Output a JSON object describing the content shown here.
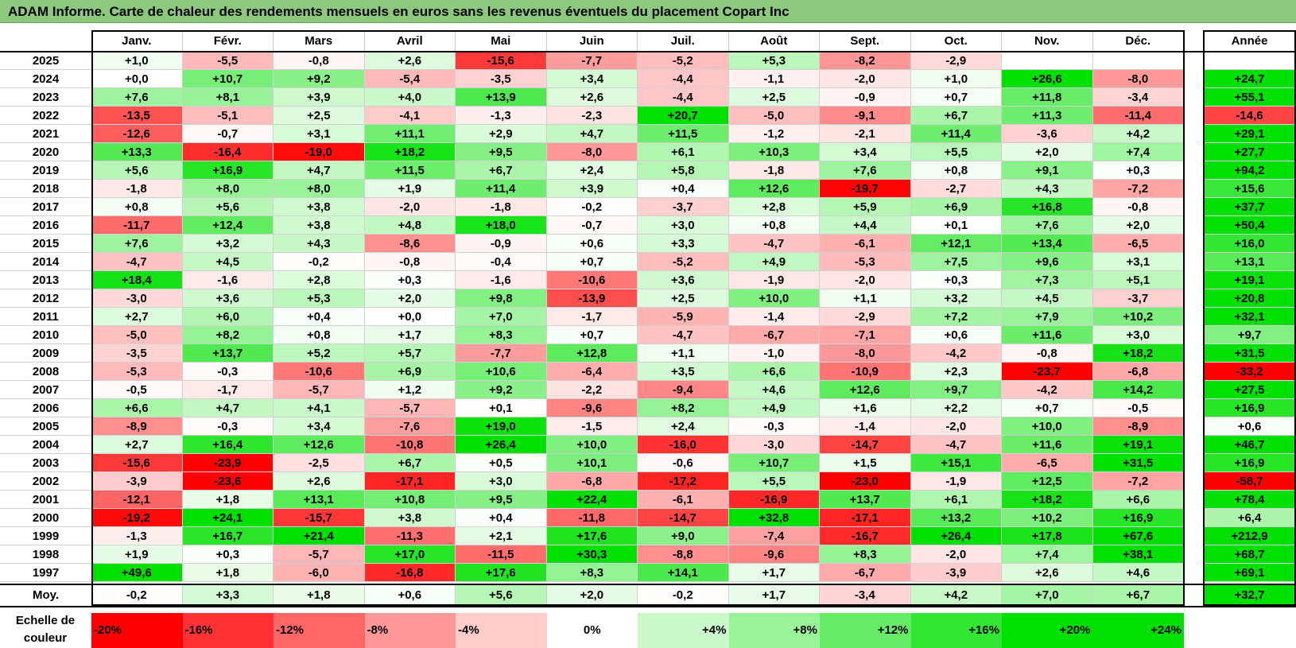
{
  "title": "ADAM Informe. Carte de chaleur des rendements mensuels en euros sans les revenus éventuels du placement Copart Inc",
  "legend_label": "Echelle de couleur",
  "colors": {
    "title_bg": "#8cc97c",
    "max_red": "#ff0000",
    "max_green": "#00e000",
    "zero": "#ffffff"
  },
  "chart_data": {
    "type": "heatmap",
    "title": "ADAM Informe. Carte de chaleur des rendements mensuels en euros sans les revenus éventuels du placement Copart Inc",
    "columns": [
      "Janv.",
      "Févr.",
      "Mars",
      "Avril",
      "Mai",
      "Juin",
      "Juil.",
      "Août",
      "Sept.",
      "Oct.",
      "Nov.",
      "Déc."
    ],
    "year_column": "Année",
    "rows": [
      {
        "year": "2025",
        "values": [
          "+1,0",
          "-5,5",
          "-0,8",
          "+2,6",
          "-15,6",
          "-7,7",
          "-5,2",
          "+5,3",
          "-8,2",
          "-2,9",
          "",
          ""
        ],
        "annual": ""
      },
      {
        "year": "2024",
        "values": [
          "+0,0",
          "+10,7",
          "+9,2",
          "-5,4",
          "-3,5",
          "+3,4",
          "-4,4",
          "-1,1",
          "-2,0",
          "+1,0",
          "+26,6",
          "-8,0"
        ],
        "annual": "+24,7"
      },
      {
        "year": "2023",
        "values": [
          "+7,6",
          "+8,1",
          "+3,9",
          "+4,0",
          "+13,9",
          "+2,6",
          "-4,4",
          "+2,5",
          "-0,9",
          "+0,7",
          "+11,8",
          "-3,4"
        ],
        "annual": "+55,1"
      },
      {
        "year": "2022",
        "values": [
          "-13,5",
          "-5,1",
          "+2,5",
          "-4,1",
          "-1,3",
          "-2,3",
          "+20,7",
          "-5,0",
          "-9,1",
          "+6,7",
          "+11,3",
          "-11,4"
        ],
        "annual": "-14,6"
      },
      {
        "year": "2021",
        "values": [
          "-12,6",
          "-0,7",
          "+3,1",
          "+11,1",
          "+2,9",
          "+4,7",
          "+11,5",
          "-1,2",
          "-2,1",
          "+11,4",
          "-3,6",
          "+4,2"
        ],
        "annual": "+29,1"
      },
      {
        "year": "2020",
        "values": [
          "+13,3",
          "-16,4",
          "-19,0",
          "+18,2",
          "+9,5",
          "-8,0",
          "+6,1",
          "+10,3",
          "+3,4",
          "+5,5",
          "+2,0",
          "+7,4"
        ],
        "annual": "+27,7"
      },
      {
        "year": "2019",
        "values": [
          "+5,6",
          "+16,9",
          "+4,7",
          "+11,5",
          "+6,7",
          "+2,4",
          "+5,8",
          "-1,8",
          "+7,6",
          "+0,8",
          "+9,1",
          "+0,3"
        ],
        "annual": "+94,2"
      },
      {
        "year": "2018",
        "values": [
          "-1,8",
          "+8,0",
          "+8,0",
          "+1,9",
          "+11,4",
          "+3,9",
          "+0,4",
          "+12,6",
          "-19,7",
          "-2,7",
          "+4,3",
          "-7,2"
        ],
        "annual": "+15,6"
      },
      {
        "year": "2017",
        "values": [
          "+0,8",
          "+5,6",
          "+3,8",
          "-2,0",
          "-1,8",
          "-0,2",
          "-3,7",
          "+2,8",
          "+5,9",
          "+6,9",
          "+16,8",
          "-0,8"
        ],
        "annual": "+37,7"
      },
      {
        "year": "2016",
        "values": [
          "-11,7",
          "+12,4",
          "+3,8",
          "+4,8",
          "+18,0",
          "-0,7",
          "+3,0",
          "+0,8",
          "+4,4",
          "+0,1",
          "+7,6",
          "+2,0"
        ],
        "annual": "+50,4"
      },
      {
        "year": "2015",
        "values": [
          "+7,6",
          "+3,2",
          "+4,3",
          "-8,6",
          "-0,9",
          "+0,6",
          "+3,3",
          "-4,7",
          "-6,1",
          "+12,1",
          "+13,4",
          "-6,5"
        ],
        "annual": "+16,0"
      },
      {
        "year": "2014",
        "values": [
          "-4,7",
          "+4,5",
          "-0,2",
          "-0,8",
          "-0,4",
          "+0,7",
          "-5,2",
          "+4,9",
          "-5,3",
          "+7,5",
          "+9,6",
          "+3,1"
        ],
        "annual": "+13,1"
      },
      {
        "year": "2013",
        "values": [
          "+18,4",
          "-1,6",
          "+2,8",
          "+0,3",
          "-1,6",
          "-10,6",
          "+3,6",
          "-1,9",
          "-2,0",
          "+0,3",
          "+7,3",
          "+5,1"
        ],
        "annual": "+19,1"
      },
      {
        "year": "2012",
        "values": [
          "-3,0",
          "+3,6",
          "+5,3",
          "+2,0",
          "+9,8",
          "-13,9",
          "+2,5",
          "+10,0",
          "+1,1",
          "+3,2",
          "+4,5",
          "-3,7"
        ],
        "annual": "+20,8"
      },
      {
        "year": "2011",
        "values": [
          "+2,7",
          "+6,0",
          "+0,4",
          "+0,0",
          "+7,0",
          "-1,7",
          "-5,9",
          "-1,4",
          "-2,9",
          "+7,2",
          "+7,9",
          "+10,2"
        ],
        "annual": "+32,1"
      },
      {
        "year": "2010",
        "values": [
          "-5,0",
          "+8,2",
          "+0,8",
          "+1,7",
          "+8,3",
          "+0,7",
          "-4,7",
          "-6,7",
          "-7,1",
          "+0,6",
          "+11,6",
          "+3,0"
        ],
        "annual": "+9,7"
      },
      {
        "year": "2009",
        "values": [
          "-3,5",
          "+13,7",
          "+5,2",
          "+5,7",
          "-7,7",
          "+12,8",
          "+1,1",
          "-1,0",
          "-8,0",
          "-4,2",
          "-0,8",
          "+18,2"
        ],
        "annual": "+31,5"
      },
      {
        "year": "2008",
        "values": [
          "-5,3",
          "-0,3",
          "-10,6",
          "+6,9",
          "+10,6",
          "-6,4",
          "+3,5",
          "+6,6",
          "-10,9",
          "+2,3",
          "-23,7",
          "-6,8"
        ],
        "annual": "-33,2"
      },
      {
        "year": "2007",
        "values": [
          "-0,5",
          "-1,7",
          "-5,7",
          "+1,2",
          "+9,2",
          "-2,2",
          "-9,4",
          "+4,6",
          "+12,6",
          "+9,7",
          "-4,2",
          "+14,2"
        ],
        "annual": "+27,5"
      },
      {
        "year": "2006",
        "values": [
          "+6,6",
          "+4,7",
          "+4,1",
          "-5,7",
          "+0,1",
          "-9,6",
          "+8,2",
          "+4,9",
          "+1,6",
          "+2,2",
          "+0,7",
          "-0,5"
        ],
        "annual": "+16,9"
      },
      {
        "year": "2005",
        "values": [
          "-8,9",
          "-0,3",
          "+3,4",
          "-7,6",
          "+19,0",
          "-1,5",
          "+2,4",
          "-0,3",
          "-1,4",
          "-2,0",
          "+10,0",
          "-8,9"
        ],
        "annual": "+0,6"
      },
      {
        "year": "2004",
        "values": [
          "+2,7",
          "+16,4",
          "+12,6",
          "-10,8",
          "+26,4",
          "+10,0",
          "-16,0",
          "-3,0",
          "-14,7",
          "-4,7",
          "+11,6",
          "+19,1"
        ],
        "annual": "+46,7"
      },
      {
        "year": "2003",
        "values": [
          "-15,6",
          "-23,9",
          "-2,5",
          "+6,7",
          "+0,5",
          "+10,1",
          "-0,6",
          "+10,7",
          "+1,5",
          "+15,1",
          "-6,5",
          "+31,5"
        ],
        "annual": "+16,9"
      },
      {
        "year": "2002",
        "values": [
          "-3,9",
          "-23,6",
          "+2,6",
          "-17,1",
          "+3,0",
          "-6,8",
          "-17,2",
          "+5,5",
          "-23,0",
          "-1,9",
          "+12,5",
          "-7,2"
        ],
        "annual": "-58,7"
      },
      {
        "year": "2001",
        "values": [
          "-12,1",
          "+1,8",
          "+13,1",
          "+10,8",
          "+9,5",
          "+22,4",
          "-6,1",
          "-16,9",
          "+13,7",
          "+6,1",
          "+18,2",
          "+6,6"
        ],
        "annual": "+78,4"
      },
      {
        "year": "2000",
        "values": [
          "-19,2",
          "+24,1",
          "-15,7",
          "+3,8",
          "+0,4",
          "-11,8",
          "-14,7",
          "+32,8",
          "-17,1",
          "+13,2",
          "+10,2",
          "+16,9"
        ],
        "annual": "+6,4"
      },
      {
        "year": "1999",
        "values": [
          "-1,3",
          "+16,7",
          "+21,4",
          "-11,3",
          "+2,1",
          "+17,6",
          "+9,0",
          "-7,4",
          "-16,7",
          "+26,4",
          "+17,8",
          "+67,6"
        ],
        "annual": "+212,9"
      },
      {
        "year": "1998",
        "values": [
          "+1,9",
          "+0,3",
          "-5,7",
          "+17,0",
          "-11,5",
          "+30,3",
          "-8,8",
          "-9,6",
          "+8,3",
          "-2,0",
          "+7,4",
          "+38,1"
        ],
        "annual": "+68,7"
      },
      {
        "year": "1997",
        "values": [
          "+49,6",
          "+1,8",
          "-6,0",
          "-16,8",
          "+17,6",
          "+8,3",
          "+14,1",
          "+1,7",
          "-6,7",
          "-3,9",
          "+2,6",
          "+4,6"
        ],
        "annual": "+69,1"
      }
    ],
    "average": {
      "label": "Moy.",
      "values": [
        "-0,2",
        "+3,3",
        "+1,8",
        "+0,6",
        "+5,6",
        "+2,0",
        "-0,2",
        "+1,7",
        "-3,4",
        "+4,2",
        "+7,0",
        "+6,7"
      ],
      "annual": "+32,7"
    },
    "scale": [
      "-20%",
      "-16%",
      "-12%",
      "-8%",
      "-4%",
      "0%",
      "+4%",
      "+8%",
      "+12%",
      "+16%",
      "+20%",
      "+24%"
    ]
  }
}
